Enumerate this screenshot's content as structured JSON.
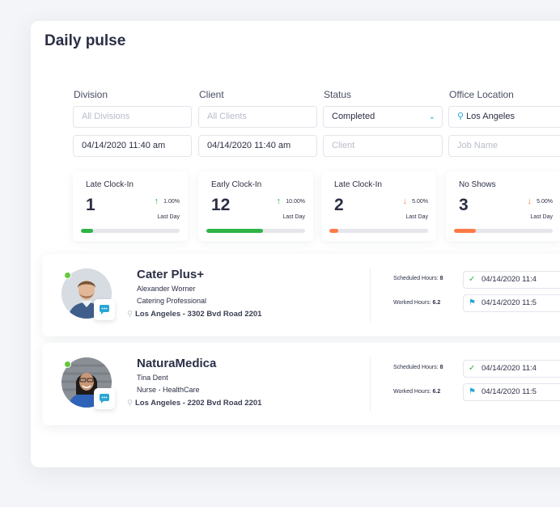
{
  "page": {
    "title": "Daily pulse"
  },
  "filters": {
    "labels": {
      "division": "Division",
      "client": "Client",
      "status": "Status",
      "office_location": "Office Location"
    },
    "row1": {
      "division_placeholder": "All Divisions",
      "client_placeholder": "All Clients",
      "status_value": "Completed",
      "office_location_value": "Los Angeles"
    },
    "row2": {
      "date_from": "04/14/2020 11:40 am",
      "date_to": "04/14/2020 11:40 am",
      "client_placeholder": "Client",
      "job_name_placeholder": "Job Name"
    }
  },
  "stats": [
    {
      "label": "Late Clock-In",
      "value": "1",
      "percent": "1.00%",
      "direction": "up",
      "period": "Last Day",
      "progress": 0.12,
      "color": "#2fb344"
    },
    {
      "label": "Early Clock-In",
      "value": "12",
      "percent": "10.00%",
      "direction": "up",
      "period": "Last Day",
      "progress": 0.57,
      "color": "#2fb344"
    },
    {
      "label": "Late Clock-In",
      "value": "2",
      "percent": "5.00%",
      "direction": "down",
      "period": "Last Day",
      "progress": 0.09,
      "color": "#ff7a45"
    },
    {
      "label": "No Shows",
      "value": "3",
      "percent": "5.00%",
      "direction": "down",
      "period": "Last Day",
      "progress": 0.22,
      "color": "#ff7a45"
    }
  ],
  "cards": [
    {
      "company": "Cater Plus+",
      "person": "Alexander Worner",
      "role": "Catering Professional",
      "address": "Los Angeles - 3302 Bvd Road 2201",
      "scheduled_label": "Scheduled Hours:",
      "scheduled_value": "8",
      "worked_label": "Worked Hours:",
      "worked_value": "6.2",
      "start_time": "04/14/2020 11:4",
      "end_time": "04/14/2020 11:5"
    },
    {
      "company": "NaturaMedica",
      "person": "Tina Dent",
      "role": "Nurse - HealthCare",
      "address": "Los Angeles - 2202 Bvd Road 2201",
      "scheduled_label": "Scheduled Hours:",
      "scheduled_value": "8",
      "worked_label": "Worked Hours:",
      "worked_value": "6.2",
      "start_time": "04/14/2020 11:4",
      "end_time": "04/14/2020 11:5"
    }
  ],
  "colors": {
    "accent": "#29a6d6",
    "up": "#2fb344",
    "down": "#ff7a45",
    "online": "#64c93a"
  }
}
